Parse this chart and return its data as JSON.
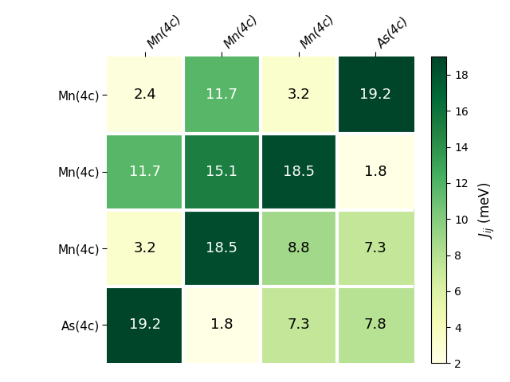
{
  "matrix": [
    [
      2.4,
      11.7,
      3.2,
      19.2
    ],
    [
      11.7,
      15.1,
      18.5,
      1.8
    ],
    [
      3.2,
      18.5,
      8.8,
      7.3
    ],
    [
      19.2,
      1.8,
      7.3,
      7.8
    ]
  ],
  "row_labels": [
    "Mn(4c)",
    "Mn(4c)",
    "Mn(4c)",
    "As(4c)"
  ],
  "col_labels": [
    "Mn(4c)",
    "Mn(4c)",
    "Mn(4c)",
    "As(4c)"
  ],
  "colorbar_label": "$J_{ij}$ (meV)",
  "vmin": 2,
  "vmax": 19,
  "cmap": "YlGn",
  "figsize": [
    6.4,
    4.8
  ],
  "dpi": 100,
  "text_color_threshold": 10.0,
  "white_sep_linewidth": 3
}
